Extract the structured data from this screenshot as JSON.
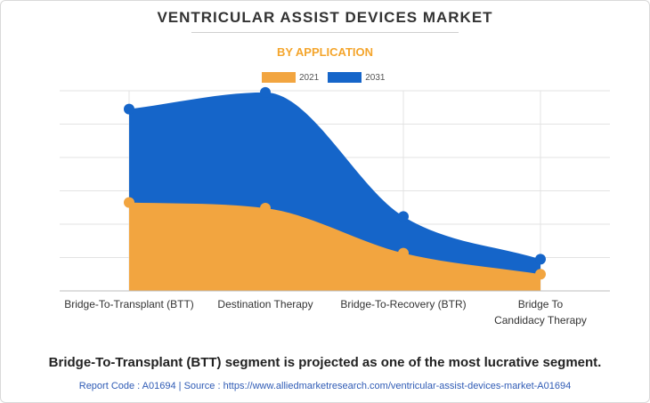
{
  "title": "VENTRICULAR ASSIST DEVICES MARKET",
  "subtitle": "BY APPLICATION",
  "colors": {
    "s2021": "#f2a540",
    "s2031": "#1565c9",
    "subtitle": "#f4a52c",
    "footer": "#2f5bb5"
  },
  "chart_data": {
    "type": "area",
    "title": "VENTRICULAR ASSIST DEVICES MARKET",
    "subtitle": "BY APPLICATION",
    "categories": [
      "Bridge-To-Transplant (BTT)",
      "Destination Therapy",
      "Bridge-To-Recovery (BTR)",
      "Bridge To Candidacy Therapy"
    ],
    "category_lines": [
      [
        "Bridge-To-Transplant (BTT)"
      ],
      [
        "Destination Therapy"
      ],
      [
        "Bridge-To-Recovery (BTR)"
      ],
      [
        "Bridge To",
        "Candidacy Therapy"
      ]
    ],
    "series": [
      {
        "name": "2021",
        "values": [
          26.5,
          24.8,
          11.3,
          5.0
        ]
      },
      {
        "name": "2031",
        "values": [
          54.5,
          59.5,
          22.3,
          9.5
        ]
      }
    ],
    "ylim": [
      0,
      60
    ],
    "grid": true,
    "legend": "top-center",
    "xlabel": "",
    "ylabel": ""
  },
  "footer": {
    "headline": "Bridge-To-Transplant (BTT) segment is projected as one of the most lucrative segment.",
    "source": "Report Code : A01694  |  Source : https://www.alliedmarketresearch.com/ventricular-assist-devices-market-A01694"
  }
}
